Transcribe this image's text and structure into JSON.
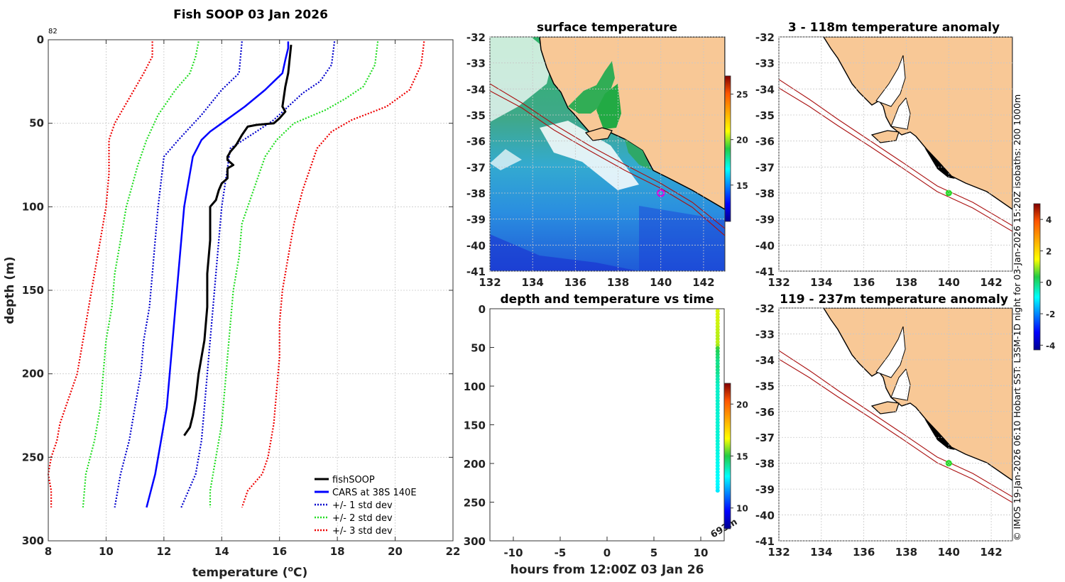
{
  "figure": {
    "title": "Fish SOOP 03 Jan 2026",
    "side_text": "© IMOS 19-Jan-2026 06:10 Hobart SST: L3SM-1D night for 03-Jan-2026 15:20Z isobaths: 200  1000m",
    "colors": {
      "fishsoop": "#000000",
      "cars": "#0000ff",
      "std1": "#0000cc",
      "std2": "#22dd22",
      "std3": "#ee0000",
      "land": "#f8c896",
      "isobath": "#aa1111",
      "track": "#22dd22",
      "marker": "#dd00dd"
    }
  },
  "chart_data": [
    {
      "id": "profile",
      "type": "line",
      "title": "Fish SOOP 03 Jan 2026",
      "annotation": "82",
      "xlabel": "temperature (°C)",
      "xlabel_main": "temperature (",
      "xlabel_sup": "o",
      "xlabel_end": "C)",
      "ylabel": "depth (m)",
      "xlim": [
        8,
        22
      ],
      "ylim": [
        0,
        300
      ],
      "y_reversed": true,
      "xticks": [
        8,
        10,
        12,
        14,
        16,
        18,
        20,
        22
      ],
      "yticks": [
        0,
        50,
        100,
        150,
        200,
        250,
        300
      ],
      "grid": true,
      "legend_position": "bottom-right",
      "series": [
        {
          "name": "fishSOOP",
          "style": "solid",
          "color": "#000000",
          "points": [
            [
              16.4,
              3
            ],
            [
              16.3,
              20
            ],
            [
              16.2,
              28
            ],
            [
              16.1,
              40
            ],
            [
              16.2,
              43
            ],
            [
              16.0,
              47
            ],
            [
              15.8,
              50
            ],
            [
              15.2,
              51
            ],
            [
              14.9,
              52
            ],
            [
              14.7,
              57
            ],
            [
              14.5,
              63
            ],
            [
              14.3,
              67
            ],
            [
              14.2,
              70
            ],
            [
              14.2,
              72
            ],
            [
              14.4,
              75
            ],
            [
              14.2,
              77
            ],
            [
              14.2,
              83
            ],
            [
              14.0,
              86
            ],
            [
              13.9,
              90
            ],
            [
              13.8,
              96
            ],
            [
              13.6,
              100
            ],
            [
              13.6,
              120
            ],
            [
              13.5,
              140
            ],
            [
              13.5,
              160
            ],
            [
              13.4,
              180
            ],
            [
              13.2,
              200
            ],
            [
              13.1,
              215
            ],
            [
              13.0,
              225
            ],
            [
              12.9,
              232
            ],
            [
              12.7,
              237
            ]
          ]
        },
        {
          "name": "CARS at 38S 140E",
          "style": "solid",
          "color": "#0000ff",
          "points": [
            [
              16.3,
              1
            ],
            [
              16.3,
              5
            ],
            [
              16.2,
              12
            ],
            [
              16.1,
              20
            ],
            [
              15.8,
              25
            ],
            [
              15.5,
              30
            ],
            [
              14.8,
              40
            ],
            [
              14.0,
              50
            ],
            [
              13.6,
              55
            ],
            [
              13.3,
              60
            ],
            [
              13.0,
              70
            ],
            [
              12.9,
              80
            ],
            [
              12.8,
              90
            ],
            [
              12.7,
              100
            ],
            [
              12.6,
              120
            ],
            [
              12.5,
              140
            ],
            [
              12.4,
              160
            ],
            [
              12.3,
              180
            ],
            [
              12.2,
              200
            ],
            [
              12.1,
              220
            ],
            [
              11.9,
              240
            ],
            [
              11.7,
              260
            ],
            [
              11.4,
              280
            ]
          ]
        },
        {
          "name": "+/- 1 std dev",
          "style": "dotted",
          "color": "#0000cc",
          "points": [
            [
              14.7,
              1
            ],
            [
              14.6,
              20
            ],
            [
              14.0,
              30
            ],
            [
              13.3,
              45
            ],
            [
              12.5,
              60
            ],
            [
              12.0,
              70
            ],
            [
              11.8,
              100
            ],
            [
              11.7,
              120
            ],
            [
              11.6,
              140
            ],
            [
              11.5,
              160
            ],
            [
              11.3,
              180
            ],
            [
              11.2,
              200
            ],
            [
              11.0,
              220
            ],
            [
              10.8,
              240
            ],
            [
              10.5,
              260
            ],
            [
              10.3,
              280
            ]
          ]
        },
        {
          "name": "+/- 1 std dev",
          "style": "dotted",
          "color": "#0000cc",
          "points": [
            [
              17.9,
              1
            ],
            [
              17.8,
              15
            ],
            [
              17.4,
              25
            ],
            [
              16.8,
              32
            ],
            [
              16.3,
              40
            ],
            [
              15.8,
              48
            ],
            [
              15.2,
              55
            ],
            [
              14.3,
              65
            ],
            [
              14.0,
              100
            ],
            [
              13.9,
              120
            ],
            [
              13.8,
              140
            ],
            [
              13.7,
              160
            ],
            [
              13.6,
              180
            ],
            [
              13.5,
              200
            ],
            [
              13.4,
              220
            ],
            [
              13.3,
              240
            ],
            [
              13.1,
              260
            ],
            [
              12.6,
              280
            ]
          ]
        },
        {
          "name": "+/- 2 std dev",
          "style": "dotted",
          "color": "#22dd22",
          "points": [
            [
              13.2,
              1
            ],
            [
              13.1,
              10
            ],
            [
              12.9,
              20
            ],
            [
              12.4,
              30
            ],
            [
              11.8,
              45
            ],
            [
              11.4,
              60
            ],
            [
              11.1,
              75
            ],
            [
              10.7,
              100
            ],
            [
              10.5,
              120
            ],
            [
              10.3,
              140
            ],
            [
              10.2,
              160
            ],
            [
              10.0,
              180
            ],
            [
              9.9,
              200
            ],
            [
              9.8,
              220
            ],
            [
              9.6,
              240
            ],
            [
              9.3,
              260
            ],
            [
              9.2,
              280
            ]
          ]
        },
        {
          "name": "+/- 2 std dev",
          "style": "dotted",
          "color": "#22dd22",
          "points": [
            [
              19.4,
              1
            ],
            [
              19.3,
              15
            ],
            [
              18.9,
              28
            ],
            [
              18.3,
              35
            ],
            [
              17.6,
              42
            ],
            [
              16.5,
              50
            ],
            [
              15.9,
              60
            ],
            [
              15.5,
              70
            ],
            [
              15.3,
              80
            ],
            [
              15.0,
              95
            ],
            [
              14.7,
              110
            ],
            [
              14.6,
              130
            ],
            [
              14.4,
              150
            ],
            [
              14.3,
              170
            ],
            [
              14.2,
              190
            ],
            [
              14.1,
              210
            ],
            [
              14.0,
              230
            ],
            [
              13.8,
              250
            ],
            [
              13.6,
              270
            ],
            [
              13.6,
              280
            ]
          ]
        },
        {
          "name": "+/- 3 std dev",
          "style": "dotted",
          "color": "#ee0000",
          "points": [
            [
              11.6,
              1
            ],
            [
              11.6,
              10
            ],
            [
              11.3,
              20
            ],
            [
              10.8,
              35
            ],
            [
              10.3,
              50
            ],
            [
              10.1,
              60
            ],
            [
              10.1,
              80
            ],
            [
              10.0,
              100
            ],
            [
              9.8,
              120
            ],
            [
              9.6,
              140
            ],
            [
              9.4,
              160
            ],
            [
              9.2,
              180
            ],
            [
              9.0,
              200
            ],
            [
              8.6,
              220
            ],
            [
              8.4,
              230
            ],
            [
              8.3,
              240
            ],
            [
              8.1,
              250
            ],
            [
              8.0,
              260
            ],
            [
              8.1,
              270
            ],
            [
              8.1,
              280
            ]
          ]
        },
        {
          "name": "+/- 3 std dev",
          "style": "dotted",
          "color": "#ee0000",
          "points": [
            [
              21.0,
              1
            ],
            [
              20.9,
              15
            ],
            [
              20.5,
              30
            ],
            [
              19.7,
              40
            ],
            [
              18.5,
              48
            ],
            [
              17.8,
              55
            ],
            [
              17.3,
              65
            ],
            [
              17.1,
              75
            ],
            [
              16.8,
              90
            ],
            [
              16.5,
              110
            ],
            [
              16.3,
              130
            ],
            [
              16.1,
              150
            ],
            [
              16.0,
              170
            ],
            [
              16.0,
              190
            ],
            [
              15.9,
              210
            ],
            [
              15.8,
              230
            ],
            [
              15.6,
              250
            ],
            [
              15.4,
              260
            ],
            [
              14.9,
              270
            ],
            [
              14.7,
              280
            ]
          ]
        }
      ]
    },
    {
      "id": "surface_temperature",
      "type": "heatmap",
      "title": "surface temperature",
      "xlim": [
        132,
        143
      ],
      "ylim": [
        -41,
        -32
      ],
      "xticks": [
        132,
        134,
        136,
        138,
        140,
        142
      ],
      "yticks": [
        -32,
        -33,
        -34,
        -35,
        -36,
        -37,
        -38,
        -39,
        -40,
        -41
      ],
      "colorbar": {
        "min": 11,
        "max": 27,
        "ticks": [
          15,
          20,
          25
        ]
      },
      "marker": {
        "lon": 140,
        "lat": -38
      }
    },
    {
      "id": "depth_time",
      "type": "scatter",
      "title": "depth and temperature vs time",
      "xlabel": "hours from 12:00Z 03 Jan 26",
      "xlim": [
        -12.5,
        12.5
      ],
      "ylim": [
        0,
        300
      ],
      "y_reversed": true,
      "xticks": [
        -10,
        -5,
        0,
        5,
        10
      ],
      "yticks": [
        0,
        50,
        100,
        150,
        200,
        250,
        300
      ],
      "colorbar": {
        "min": 8,
        "max": 22,
        "ticks": [
          10,
          15,
          20
        ]
      },
      "annotation": "693m",
      "hour": 11.8,
      "depth_range": [
        3,
        237
      ]
    },
    {
      "id": "anomaly_upper",
      "type": "map",
      "title": "3 - 118m temperature anomaly",
      "xlim": [
        132,
        143
      ],
      "ylim": [
        -41,
        -32
      ],
      "xticks": [
        132,
        134,
        136,
        138,
        140,
        142
      ],
      "yticks": [
        -32,
        -33,
        -34,
        -35,
        -36,
        -37,
        -38,
        -39,
        -40,
        -41
      ],
      "marker": {
        "lon": 140,
        "lat": -38
      }
    },
    {
      "id": "anomaly_lower",
      "type": "map",
      "title": "119 - 237m temperature anomaly",
      "xlim": [
        132,
        143
      ],
      "ylim": [
        -41,
        -32
      ],
      "xticks": [
        132,
        134,
        136,
        138,
        140,
        142
      ],
      "yticks": [
        -32,
        -33,
        -34,
        -35,
        -36,
        -37,
        -38,
        -39,
        -40,
        -41
      ],
      "marker": {
        "lon": 140,
        "lat": -38
      }
    },
    {
      "id": "anomaly_colorbar",
      "type": "colorbar",
      "min": -4.3,
      "max": 5,
      "ticks": [
        -4,
        -2,
        0,
        2,
        4
      ]
    }
  ]
}
